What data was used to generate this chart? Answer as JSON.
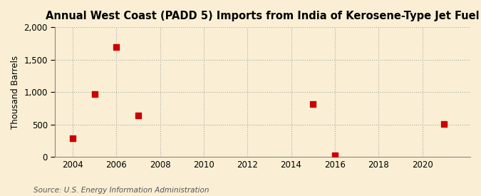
{
  "title": "Annual West Coast (PADD 5) Imports from India of Kerosene-Type Jet Fuel",
  "ylabel": "Thousand Barrels",
  "source": "Source: U.S. Energy Information Administration",
  "years": [
    2004,
    2005,
    2006,
    2007,
    2015,
    2016,
    2021
  ],
  "values": [
    290,
    970,
    1690,
    640,
    820,
    20,
    510
  ],
  "marker_color": "#cc0000",
  "marker_size": 28,
  "background_color": "#faefd4",
  "grid_color": "#aaaaaa",
  "xlim": [
    2003.2,
    2022.2
  ],
  "ylim": [
    0,
    2000
  ],
  "yticks": [
    0,
    500,
    1000,
    1500,
    2000
  ],
  "xticks": [
    2004,
    2006,
    2008,
    2010,
    2012,
    2014,
    2016,
    2018,
    2020
  ],
  "title_fontsize": 10.5,
  "label_fontsize": 8.5,
  "tick_fontsize": 8.5,
  "source_fontsize": 7.5
}
